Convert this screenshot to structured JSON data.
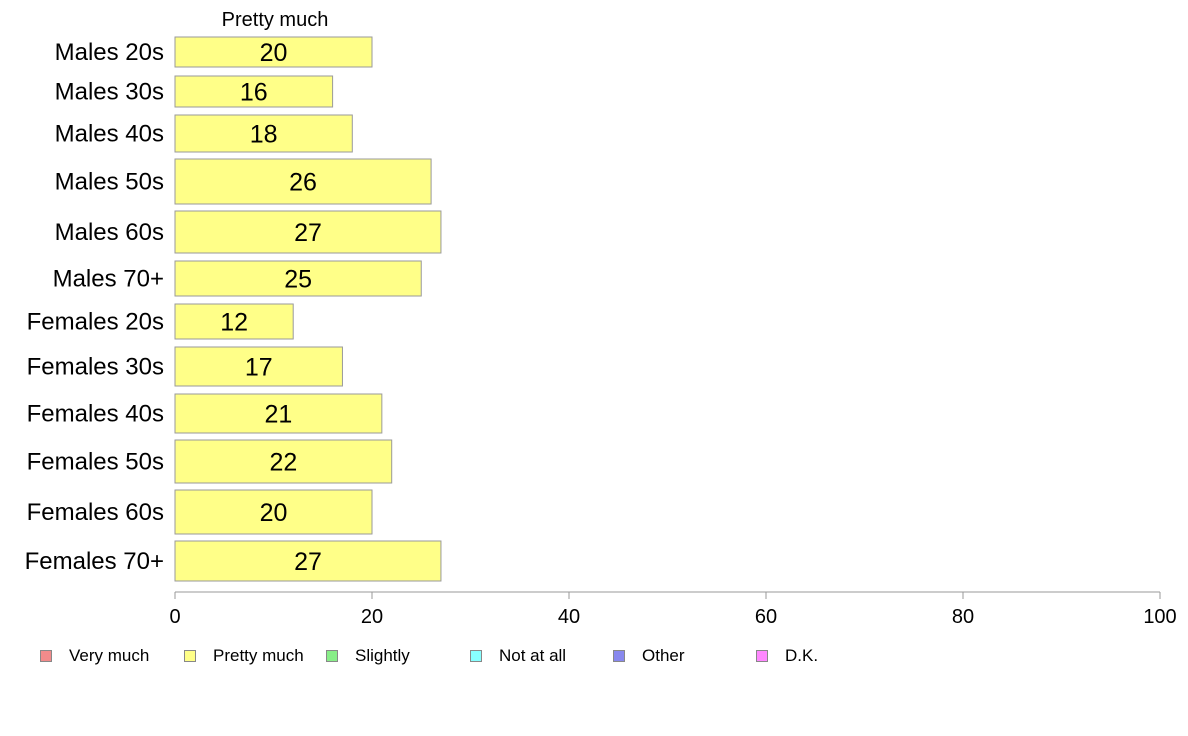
{
  "chart_data": {
    "type": "bar",
    "orientation": "horizontal",
    "subtitle": "Pretty much",
    "categories": [
      "Males 20s",
      "Males 30s",
      "Males 40s",
      "Males 50s",
      "Males 60s",
      "Males 70+",
      "Females 20s",
      "Females 30s",
      "Females 40s",
      "Females 50s",
      "Females 60s",
      "Females 70+"
    ],
    "series": [
      {
        "name": "Pretty much",
        "color": "#ffff88",
        "values": [
          20,
          16,
          18,
          26,
          27,
          25,
          12,
          17,
          21,
          22,
          20,
          27
        ]
      }
    ],
    "xlim": [
      0,
      100
    ],
    "xticks": [
      0,
      20,
      40,
      60,
      80,
      100
    ],
    "grid": false,
    "legend_position": "bottom-left",
    "legend": [
      {
        "label": "Very much",
        "color": "#f28b8b"
      },
      {
        "label": "Pretty much",
        "color": "#ffff88"
      },
      {
        "label": "Slightly",
        "color": "#88ee88"
      },
      {
        "label": "Not at all",
        "color": "#88ffff"
      },
      {
        "label": "Other",
        "color": "#8888ee"
      },
      {
        "label": "D.K.",
        "color": "#ff88ff"
      }
    ]
  }
}
